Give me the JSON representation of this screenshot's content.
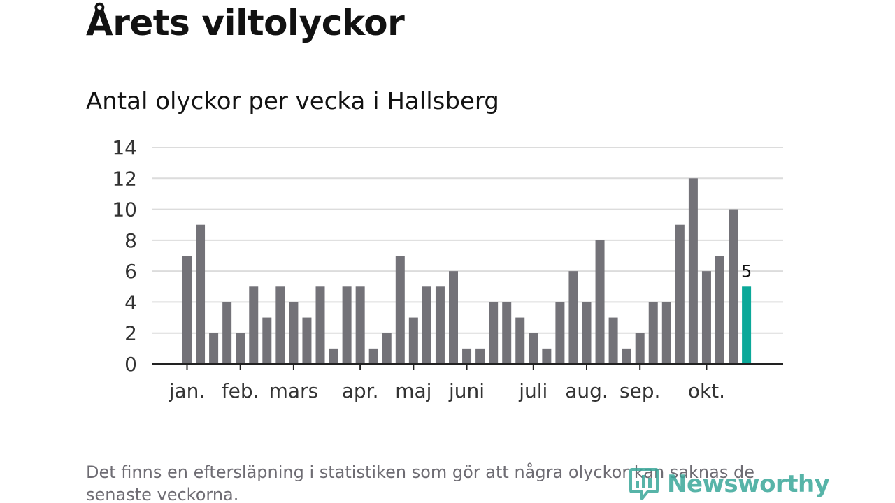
{
  "title": "Årets viltolyckor",
  "subtitle": "Antal olyckor per vecka i Hallsberg",
  "footnote": "Det finns en eftersläpning i statistiken som gör att några olyckor kan saknas de senaste veckorna.",
  "brand": {
    "name": "Newsworthy",
    "color": "#3aa79a",
    "icon": "bar-chart-logo-icon"
  },
  "chart_data": {
    "type": "bar",
    "title": "",
    "xlabel": "",
    "ylabel": "",
    "ylim": [
      0,
      14
    ],
    "yticks": [
      0,
      2,
      4,
      6,
      8,
      10,
      12,
      14
    ],
    "grid": true,
    "legend": "none",
    "bar_color": "#737278",
    "highlight_color": "#0ba899",
    "highlight_index": 42,
    "highlight_label": "5",
    "values": [
      7,
      9,
      2,
      4,
      2,
      5,
      3,
      5,
      4,
      3,
      5,
      1,
      5,
      5,
      1,
      2,
      7,
      3,
      5,
      5,
      6,
      1,
      1,
      4,
      4,
      3,
      2,
      1,
      4,
      6,
      4,
      8,
      3,
      1,
      2,
      4,
      4,
      9,
      12,
      6,
      7,
      10,
      5
    ],
    "month_labels": [
      {
        "label": "jan.",
        "week": 0
      },
      {
        "label": "feb.",
        "week": 4
      },
      {
        "label": "mars",
        "week": 8
      },
      {
        "label": "apr.",
        "week": 13
      },
      {
        "label": "maj",
        "week": 17
      },
      {
        "label": "juni",
        "week": 21
      },
      {
        "label": "juli",
        "week": 26
      },
      {
        "label": "aug.",
        "week": 30
      },
      {
        "label": "sep.",
        "week": 34
      },
      {
        "label": "okt.",
        "week": 39
      }
    ]
  }
}
